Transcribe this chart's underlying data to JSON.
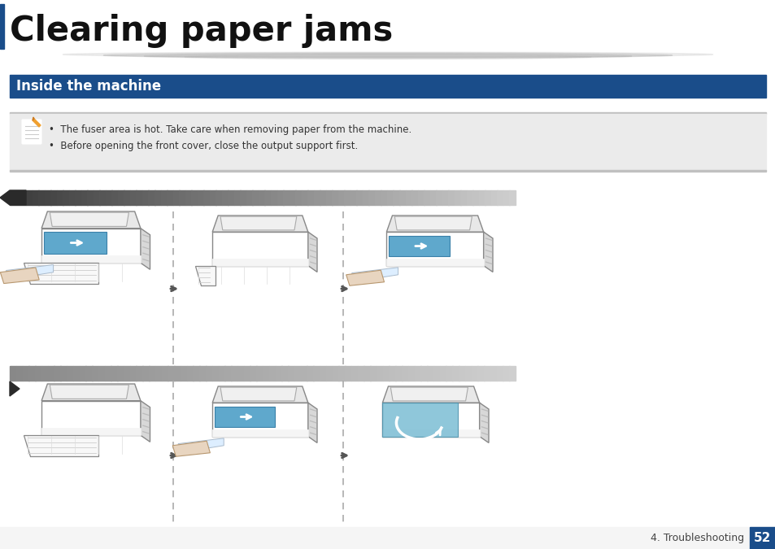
{
  "title": "Clearing paper jams",
  "section_title": "Inside the machine",
  "note_line1": "The fuser area is hot. Take care when removing paper from the machine.",
  "note_line2": "Before opening the front cover, close the output support first.",
  "bg_color": "#ffffff",
  "title_color": "#111111",
  "section_bg_color": "#1a4d8a",
  "section_text_color": "#ffffff",
  "note_bg_color": "#ebebeb",
  "footer_text": "4. Troubleshooting",
  "footer_number": "52",
  "footer_bg_color": "#1a4d8a",
  "footer_text_color": "#ffffff",
  "title_fontsize": 30,
  "section_fontsize": 12,
  "note_fontsize": 8.5,
  "footer_fontsize": 9,
  "left_bar_color": "#1a4d8a",
  "title_separator_color": "#cccccc",
  "note_top_line_color": "#c0c0c0",
  "note_bottom_line_color": "#c0c0c0",
  "step_bar_dark": "#404040",
  "step_bar_light": "#d0d0d0",
  "dashed_line_color": "#aaaaaa",
  "arrow_color": "#555555"
}
